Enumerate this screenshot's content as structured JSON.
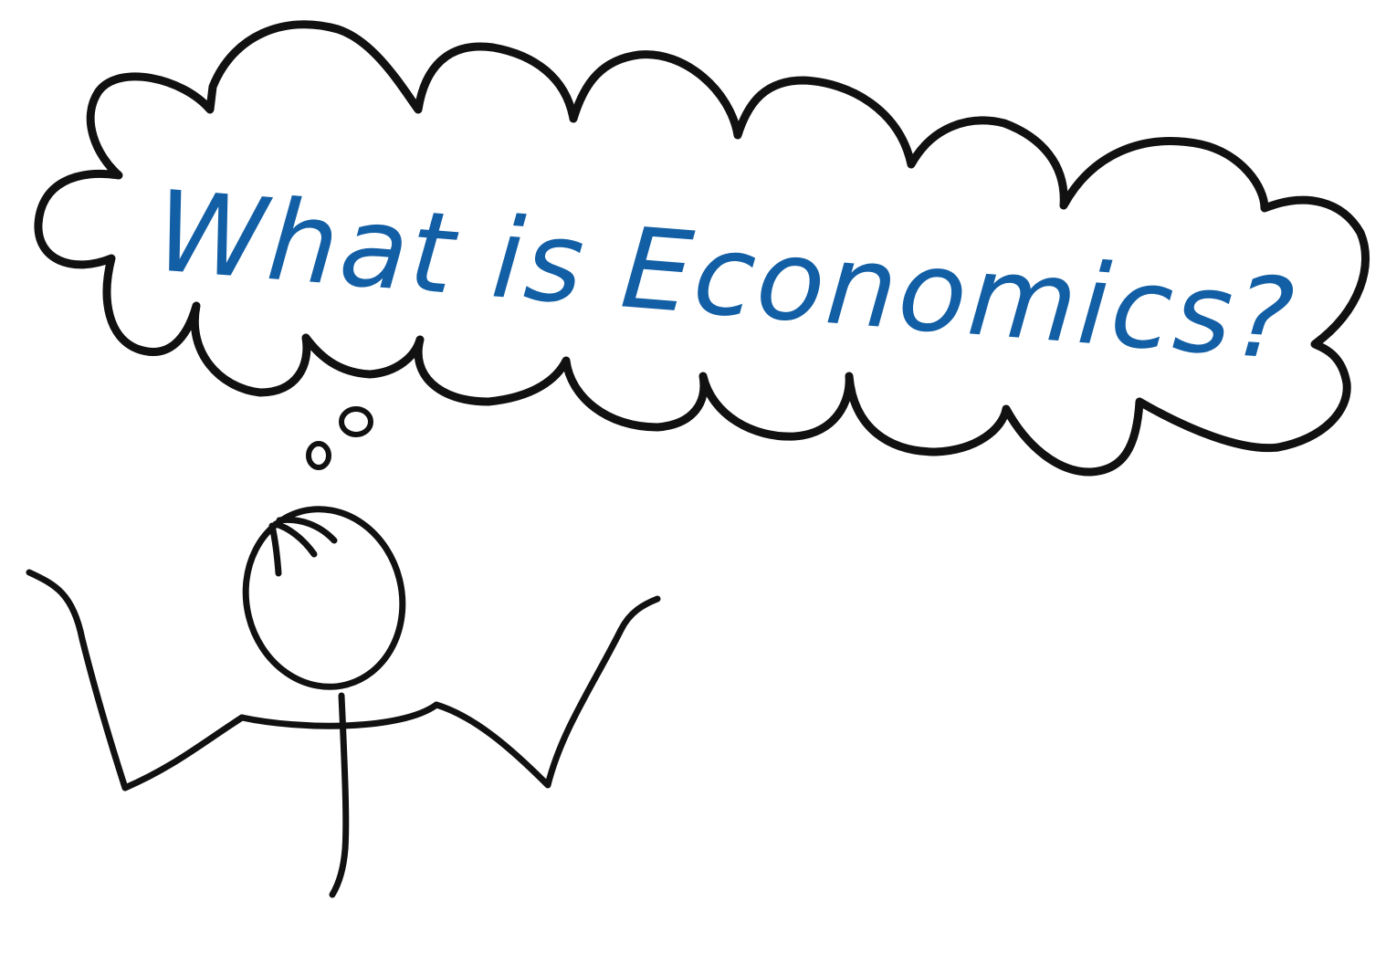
{
  "headline": {
    "text": "What is Economics?",
    "color": "#135fa5"
  },
  "illustration": {
    "ink_color": "#111111",
    "subject": "stick-figure",
    "bubble": "thought-cloud"
  }
}
